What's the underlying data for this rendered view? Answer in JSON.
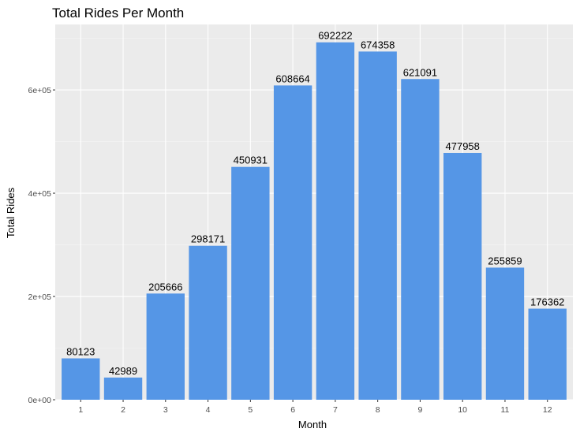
{
  "chart_data": {
    "type": "bar",
    "title": "Total Rides Per Month",
    "xlabel": "Month",
    "ylabel": "Total Rides",
    "categories": [
      "1",
      "2",
      "3",
      "4",
      "5",
      "6",
      "7",
      "8",
      "9",
      "10",
      "11",
      "12"
    ],
    "values": [
      80123,
      42989,
      205666,
      298171,
      450931,
      608664,
      692222,
      674358,
      621091,
      477958,
      255859,
      176362
    ],
    "data_labels": [
      "80123",
      "42989",
      "205666",
      "298171",
      "450931",
      "608664",
      "692222",
      "674358",
      "621091",
      "477958",
      "255859",
      "176362"
    ],
    "yticks": [
      0,
      200000,
      400000,
      600000
    ],
    "ytick_labels": [
      "0e+00",
      "2e+05",
      "4e+05",
      "6e+05"
    ],
    "ylim": [
      0,
      726833
    ],
    "grid": true,
    "legend": "none",
    "colors": {
      "bar": "#5596e6",
      "panel_background": "#ebebeb",
      "grid_major": "#ffffff",
      "grid_minor": "#f5f5f5"
    }
  }
}
